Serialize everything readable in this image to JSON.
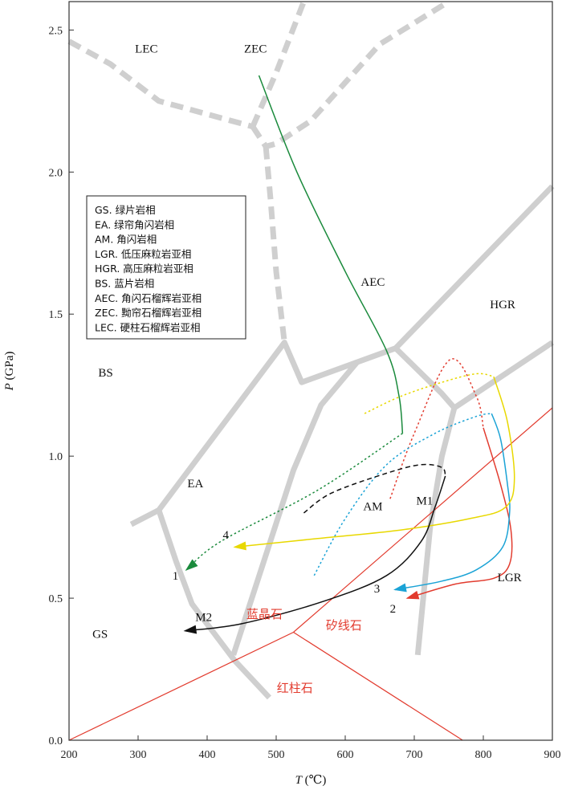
{
  "chart_data": {
    "type": "line",
    "xlabel_var": "T",
    "xlabel_unit": " (℃)",
    "ylabel_var": "P",
    "ylabel_unit": " (GPa)",
    "xlim": [
      200,
      900
    ],
    "ylim": [
      0.0,
      2.6
    ],
    "x_ticks": [
      "200",
      "300",
      "400",
      "500",
      "600",
      "700",
      "800",
      "900"
    ],
    "y_ticks": [
      "0.0",
      "0.5",
      "1.0",
      "1.5",
      "2.0",
      "2.5"
    ],
    "legend": [
      "GS. 绿片岩相",
      "EA. 绿帘角闪岩相",
      "AM. 角闪岩相",
      "LGR. 低压麻粒岩亚相",
      "HGR. 高压麻粒岩亚相",
      "BS. 蓝片岩相",
      "AEC. 角闪石榴辉岩亚相",
      "ZEC. 黝帘石榴辉岩亚相",
      "LEC. 硬柱石榴辉岩亚相"
    ],
    "facies_labels": [
      {
        "text": "LEC",
        "x": 312,
        "y": 2.42
      },
      {
        "text": "ZEC",
        "x": 470,
        "y": 2.42
      },
      {
        "text": "AEC",
        "x": 640,
        "y": 1.6
      },
      {
        "text": "HGR",
        "x": 828,
        "y": 1.52
      },
      {
        "text": "BS",
        "x": 253,
        "y": 1.28
      },
      {
        "text": "EA",
        "x": 383,
        "y": 0.89
      },
      {
        "text": "AM",
        "x": 640,
        "y": 0.81
      },
      {
        "text": "LGR",
        "x": 838,
        "y": 0.56
      },
      {
        "text": "GS",
        "x": 245,
        "y": 0.36
      }
    ],
    "mineral_labels": [
      {
        "text": "蓝晶石",
        "x": 483,
        "y": 0.43
      },
      {
        "text": "矽线石",
        "x": 598,
        "y": 0.39
      },
      {
        "text": "红柱石",
        "x": 527,
        "y": 0.17
      }
    ],
    "path_labels": [
      {
        "text": "1",
        "x": 354,
        "y": 0.565,
        "color": "#1a8a3c"
      },
      {
        "text": "2",
        "x": 669,
        "y": 0.45,
        "color": "#e23b2e"
      },
      {
        "text": "3",
        "x": 646,
        "y": 0.52,
        "color": "#1ba3d6"
      },
      {
        "text": "4",
        "x": 427,
        "y": 0.71,
        "color": "#e8d800"
      },
      {
        "text": "M1",
        "x": 715,
        "y": 0.83,
        "color": "#111111"
      },
      {
        "text": "M2",
        "x": 395,
        "y": 0.42,
        "color": "#111111"
      }
    ],
    "boundaries_solid": [
      [
        [
          290,
          0.76
        ],
        [
          330,
          0.81
        ],
        [
          512,
          1.4
        ],
        [
          537,
          1.26
        ],
        [
          673,
          1.38
        ],
        [
          900,
          1.95
        ]
      ],
      [
        [
          330,
          0.81
        ],
        [
          355,
          0.63
        ],
        [
          378,
          0.48
        ],
        [
          440,
          0.28
        ],
        [
          490,
          0.15
        ]
      ],
      [
        [
          438,
          0.3
        ],
        [
          525,
          0.95
        ],
        [
          565,
          1.18
        ],
        [
          617,
          1.33
        ]
      ],
      [
        [
          673,
          1.38
        ],
        [
          740,
          1.22
        ],
        [
          758,
          1.17
        ],
        [
          900,
          1.4
        ]
      ],
      [
        [
          758,
          1.17
        ],
        [
          740,
          1.0
        ],
        [
          723,
          0.75
        ],
        [
          705,
          0.3
        ]
      ]
    ],
    "boundaries_dashed": [
      [
        [
          200,
          2.46
        ],
        [
          260,
          2.38
        ],
        [
          330,
          2.25
        ],
        [
          466,
          2.16
        ]
      ],
      [
        [
          466,
          2.16
        ],
        [
          500,
          2.35
        ],
        [
          540,
          2.6
        ]
      ],
      [
        [
          466,
          2.16
        ],
        [
          485,
          2.09
        ],
        [
          500,
          2.1
        ],
        [
          550,
          2.18
        ],
        [
          650,
          2.45
        ],
        [
          750,
          2.6
        ]
      ],
      [
        [
          485,
          2.09
        ],
        [
          492,
          1.9
        ],
        [
          500,
          1.65
        ],
        [
          512,
          1.4
        ]
      ]
    ],
    "mineral_boundaries": [
      [
        [
          200,
          0.0
        ],
        [
          525,
          0.38
        ],
        [
          900,
          1.17
        ]
      ],
      [
        [
          525,
          0.38
        ],
        [
          770,
          0.0
        ]
      ]
    ],
    "series": [
      {
        "segments": [
          {
            "style": "solid",
            "points": [
              [
                475,
                2.34
              ],
              [
                530,
                2.0
              ],
              [
                600,
                1.65
              ],
              [
                660,
                1.37
              ],
              [
                678,
                1.21
              ],
              [
                683,
                1.08
              ]
            ]
          },
          {
            "style": "dotted",
            "points": [
              [
                683,
                1.08
              ],
              [
                560,
                0.88
              ],
              [
                420,
                0.7
              ],
              [
                370,
                0.6
              ]
            ]
          }
        ],
        "arrow_end": true,
        "color": "#1a8a3c"
      },
      {
        "segments": [
          {
            "style": "dotted",
            "points": [
              [
                665,
                0.85
              ],
              [
                700,
                1.08
              ],
              [
                752,
                1.34
              ],
              [
                790,
                1.21
              ],
              [
                800,
                1.1
              ]
            ]
          },
          {
            "style": "solid",
            "points": [
              [
                800,
                1.1
              ],
              [
                825,
                0.9
              ],
              [
                840,
                0.74
              ],
              [
                838,
                0.62
              ],
              [
                815,
                0.57
              ],
              [
                760,
                0.55
              ],
              [
                690,
                0.5
              ]
            ]
          }
        ],
        "arrow_end": true,
        "color": "#e23b2e"
      },
      {
        "segments": [
          {
            "style": "dotted",
            "points": [
              [
                555,
                0.58
              ],
              [
                600,
                0.78
              ],
              [
                660,
                0.97
              ],
              [
                730,
                1.08
              ],
              [
                790,
                1.14
              ],
              [
                812,
                1.15
              ]
            ]
          },
          {
            "style": "solid",
            "points": [
              [
                812,
                1.15
              ],
              [
                825,
                1.06
              ],
              [
                835,
                0.9
              ],
              [
                838,
                0.8
              ],
              [
                828,
                0.68
              ],
              [
                790,
                0.6
              ],
              [
                740,
                0.56
              ],
              [
                672,
                0.53
              ]
            ]
          }
        ],
        "arrow_end": true,
        "color": "#1ba3d6"
      },
      {
        "segments": [
          {
            "style": "dotted",
            "points": [
              [
                628,
                1.15
              ],
              [
                680,
                1.21
              ],
              [
                740,
                1.26
              ],
              [
                790,
                1.29
              ],
              [
                815,
                1.28
              ]
            ]
          },
          {
            "style": "solid",
            "points": [
              [
                815,
                1.28
              ],
              [
                835,
                1.12
              ],
              [
                845,
                0.92
              ],
              [
                832,
                0.82
              ],
              [
                780,
                0.78
              ],
              [
                680,
                0.74
              ],
              [
                560,
                0.71
              ],
              [
                440,
                0.68
              ]
            ]
          }
        ],
        "arrow_end": true,
        "color": "#e8d800"
      },
      {
        "segments": [
          {
            "style": "dashed",
            "points": [
              [
                540,
                0.8
              ],
              [
                580,
                0.87
              ],
              [
                660,
                0.94
              ],
              [
                710,
                0.97
              ],
              [
                740,
                0.96
              ],
              [
                745,
                0.93
              ]
            ]
          },
          {
            "style": "solid",
            "points": [
              [
                745,
                0.93
              ],
              [
                730,
                0.82
              ],
              [
                710,
                0.7
              ],
              [
                660,
                0.58
              ],
              [
                570,
                0.49
              ],
              [
                450,
                0.41
              ],
              [
                368,
                0.385
              ]
            ]
          }
        ],
        "arrow_end": true,
        "color": "#111111"
      }
    ]
  }
}
